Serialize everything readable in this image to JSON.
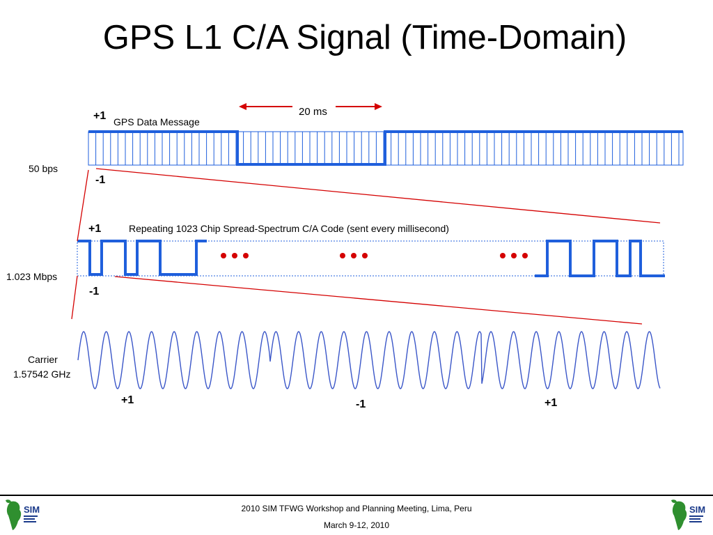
{
  "slide": {
    "title": "GPS L1 C/A Signal (Time-Domain)"
  },
  "data_message": {
    "label": "GPS Data Message",
    "rate": "50 bps",
    "plus": "+1",
    "minus": "-1",
    "span": "20 ms"
  },
  "ca_code": {
    "label": "Repeating 1023 Chip Spread-Spectrum C/A Code (sent every millisecond)",
    "rate": "1.023 Mbps",
    "plus": "+1",
    "minus": "-1"
  },
  "carrier": {
    "label_line1": "Carrier",
    "label_line2": "1.57542 GHz",
    "phase_left": "+1",
    "phase_mid": "-1",
    "phase_right": "+1"
  },
  "footer": {
    "line1": "2010 SIM TFWG Workshop and Planning Meeting, Lima, Peru",
    "line2": "March 9-12, 2010",
    "logo_text": "SIM"
  },
  "colors": {
    "signal_blue": "#1f5fdc",
    "arrow_red": "#d40000",
    "carrier_blue": "#3a56c8"
  }
}
